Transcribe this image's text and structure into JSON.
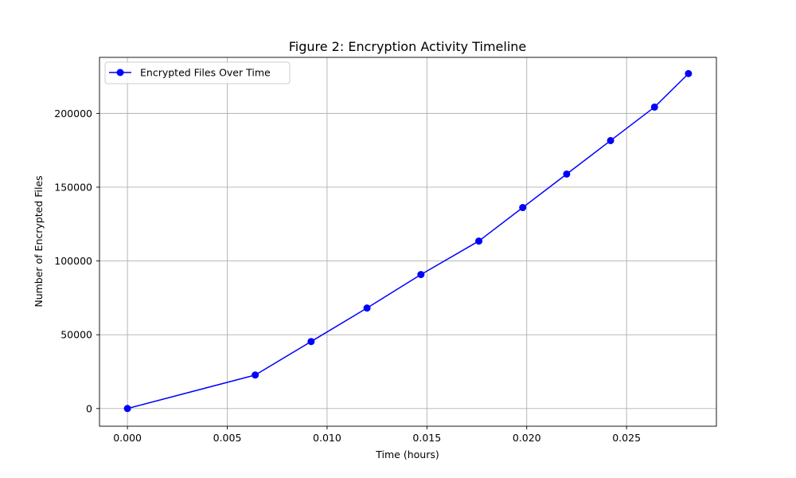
{
  "chart_data": {
    "type": "line",
    "title": "Figure 2: Encryption Activity Timeline",
    "xlabel": "Time (hours)",
    "ylabel": "Number of Encrypted Files",
    "xlim": [
      -0.0014,
      0.0295
    ],
    "ylim": [
      -12000,
      238000
    ],
    "xticks": [
      0.0,
      0.005,
      0.01,
      0.015,
      0.02,
      0.025
    ],
    "xtick_labels": [
      "0.000",
      "0.005",
      "0.010",
      "0.015",
      "0.020",
      "0.025"
    ],
    "yticks": [
      0,
      50000,
      100000,
      150000,
      200000
    ],
    "ytick_labels": [
      "0",
      "50000",
      "100000",
      "150000",
      "200000"
    ],
    "grid": true,
    "legend_position": "top-left",
    "series": [
      {
        "name": "Encrypted Files Over Time",
        "color": "#0000ff",
        "marker": "circle",
        "x": [
          0.0,
          0.0064,
          0.0092,
          0.012,
          0.0147,
          0.0176,
          0.0198,
          0.022,
          0.0242,
          0.0264,
          0.0281
        ],
        "y": [
          0,
          22700,
          45400,
          68100,
          90800,
          113500,
          136200,
          158900,
          181600,
          204300,
          227000
        ]
      }
    ]
  }
}
